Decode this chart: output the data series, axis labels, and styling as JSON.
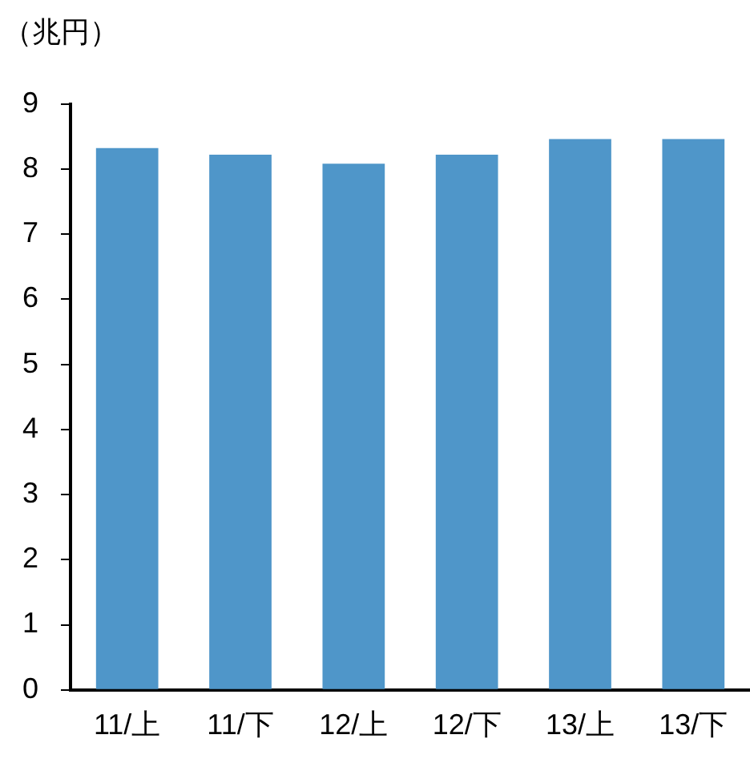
{
  "chart_data": {
    "type": "bar",
    "ylabel": "（兆円）",
    "categories": [
      "11/上",
      "11/下",
      "12/上",
      "12/下",
      "13/上",
      "13/下"
    ],
    "values": [
      8.32,
      8.22,
      8.08,
      8.22,
      8.46,
      8.46
    ],
    "color": "#4f96c9",
    "ylim": [
      0,
      9
    ],
    "yticks": [
      0,
      1,
      2,
      3,
      4,
      5,
      6,
      7,
      8,
      9
    ],
    "grid": false,
    "legend": false
  }
}
